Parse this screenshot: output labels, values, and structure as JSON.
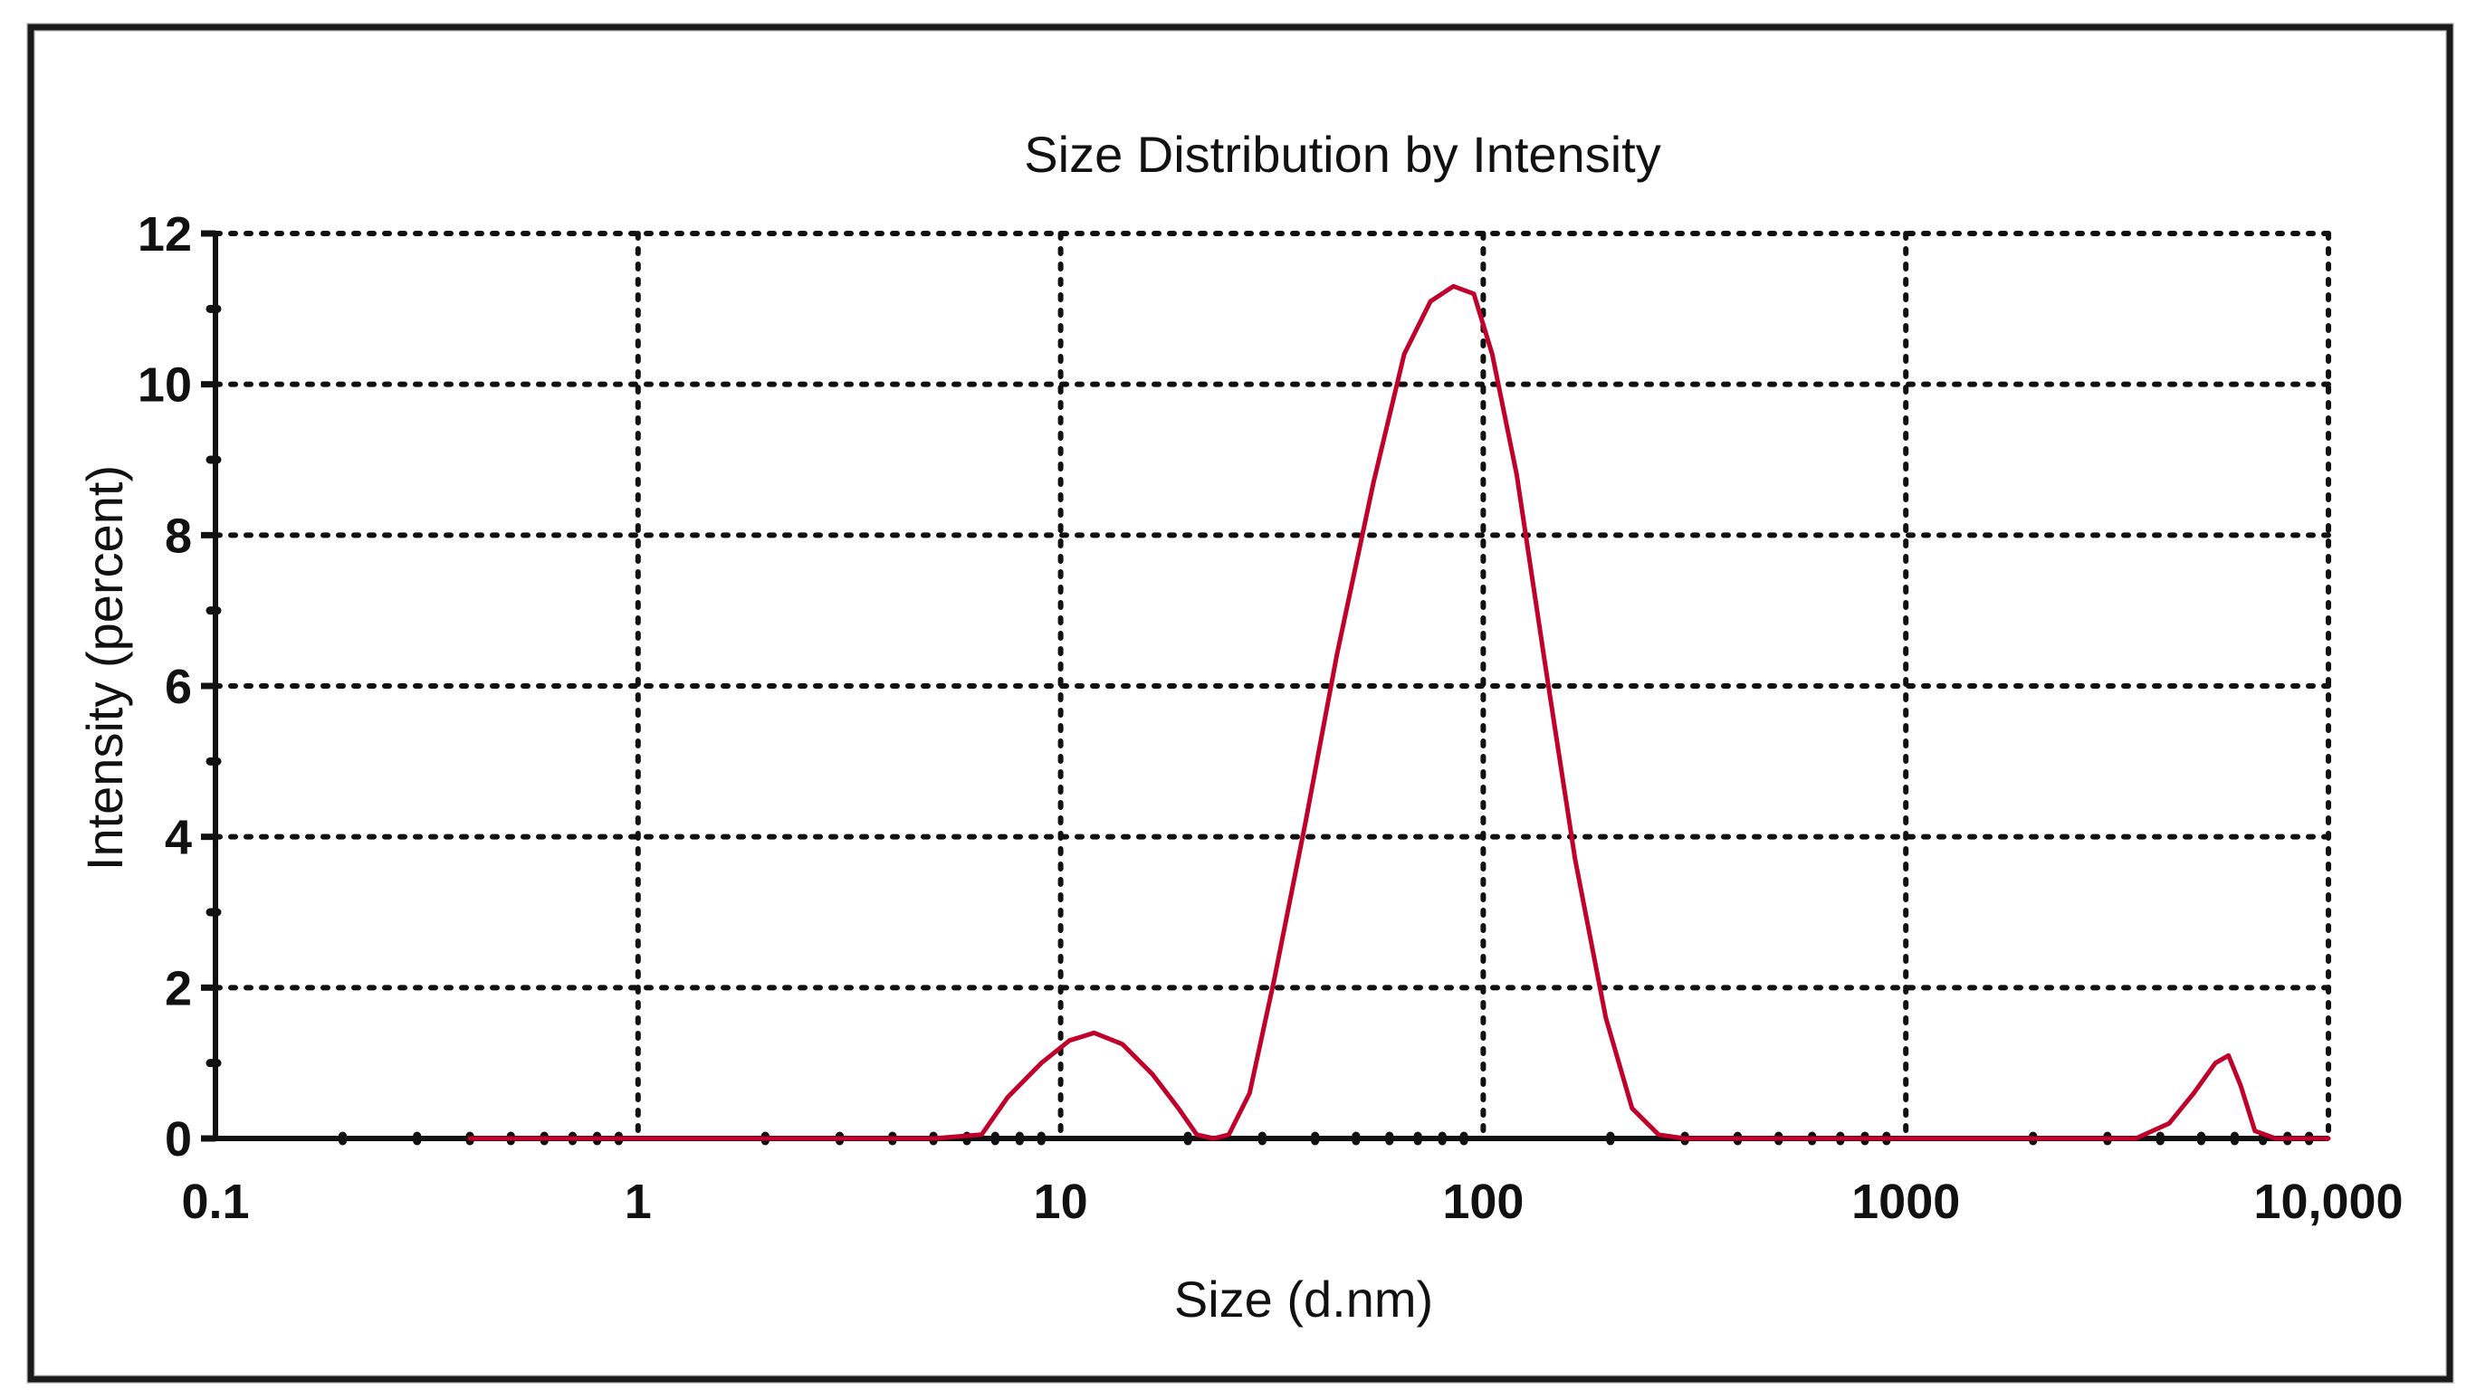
{
  "chart_data": {
    "type": "line",
    "title": "Size Distribution by Intensity",
    "xlabel": "Size (d.nm)",
    "ylabel": "Intensity (percent)",
    "xscale": "log",
    "xlim": [
      0.1,
      10000
    ],
    "ylim": [
      0,
      12
    ],
    "xticks": [
      0.1,
      1,
      10,
      100,
      1000,
      10000
    ],
    "xtick_labels": [
      "0.1",
      "1",
      "10",
      "100",
      "1000",
      "10,000"
    ],
    "yticks": [
      0,
      2,
      4,
      6,
      8,
      10,
      12
    ],
    "ytick_labels": [
      "0",
      "2",
      "4",
      "6",
      "8",
      "10",
      "12"
    ],
    "grid": true,
    "series": [
      {
        "color": "#c0002a",
        "x": [
          0.4,
          1,
          3,
          5,
          6.5,
          7.5,
          9,
          10.5,
          12,
          14,
          16.5,
          19,
          21,
          23,
          25,
          28,
          32,
          38,
          45,
          55,
          65,
          75,
          85,
          95,
          105,
          120,
          140,
          165,
          195,
          225,
          260,
          300,
          500,
          1000,
          2000,
          3500,
          4200,
          4800,
          5400,
          5800,
          6200,
          6700,
          7500,
          10000
        ],
        "y": [
          0,
          0,
          0,
          0,
          0.05,
          0.55,
          1.0,
          1.3,
          1.4,
          1.25,
          0.85,
          0.4,
          0.05,
          0,
          0.05,
          0.6,
          2.1,
          4.2,
          6.4,
          8.7,
          10.4,
          11.1,
          11.3,
          11.2,
          10.4,
          8.8,
          6.3,
          3.7,
          1.6,
          0.4,
          0.05,
          0,
          0,
          0,
          0,
          0,
          0.2,
          0.6,
          1.0,
          1.1,
          0.7,
          0.1,
          0,
          0
        ]
      }
    ]
  }
}
